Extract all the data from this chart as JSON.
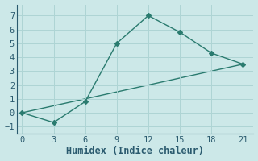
{
  "line1_x": [
    0,
    3,
    6,
    9,
    12,
    15,
    18,
    21
  ],
  "line1_y": [
    0,
    -0.7,
    0.8,
    5.0,
    7.0,
    5.8,
    4.3,
    3.5
  ],
  "line2_x": [
    0,
    21
  ],
  "line2_y": [
    0,
    3.5
  ],
  "color": "#2a7b6f",
  "bg_color": "#cce8e8",
  "grid_color": "#aed4d4",
  "xlabel": "Humidex (Indice chaleur)",
  "xlim": [
    -0.5,
    22
  ],
  "ylim": [
    -1.5,
    7.8
  ],
  "xticks": [
    0,
    3,
    6,
    9,
    12,
    15,
    18,
    21
  ],
  "yticks": [
    -1,
    0,
    1,
    2,
    3,
    4,
    5,
    6,
    7
  ],
  "marker": "D",
  "marker_size": 3,
  "linewidth": 1.0,
  "tick_labelsize": 7.5,
  "xlabel_fontsize": 8.5,
  "tick_color": "#2a5a6e",
  "label_color": "#2a5a6e"
}
